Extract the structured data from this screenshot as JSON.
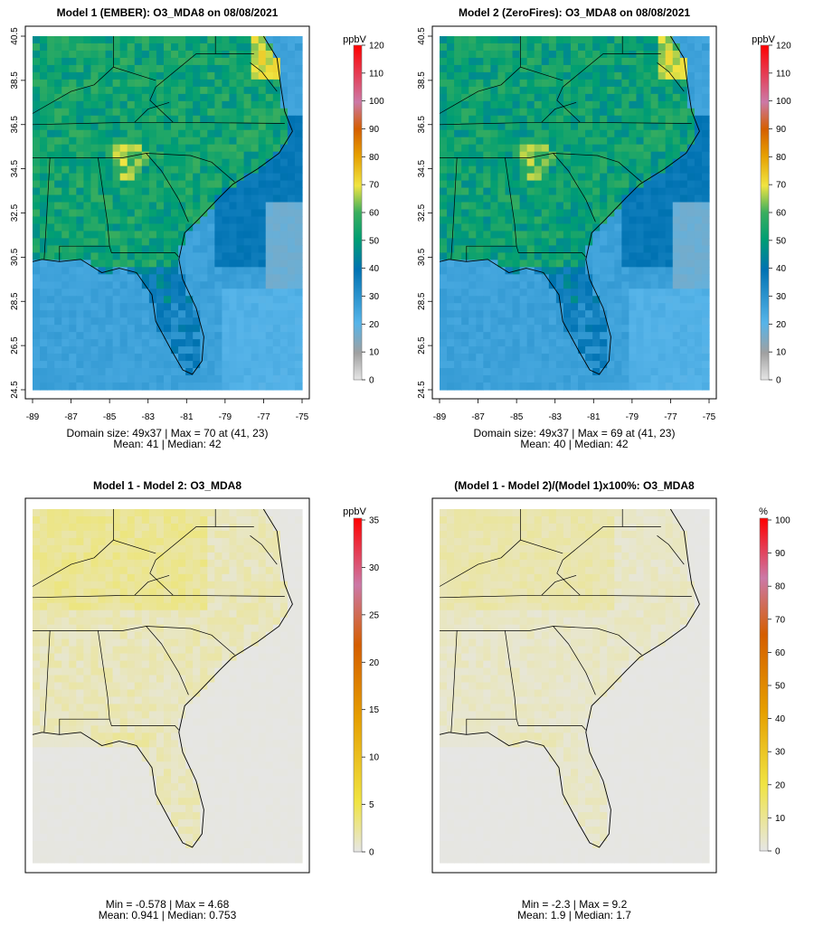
{
  "chart_data": [
    {
      "type": "heatmap",
      "title": "Model 1 (EMBER): O3_MDA8 on 08/08/2021",
      "legend_unit": "ppbV",
      "legend_ticks": [
        "0",
        "10",
        "20",
        "30",
        "40",
        "50",
        "60",
        "70",
        "80",
        "90",
        "100",
        "110",
        "120"
      ],
      "legend_range": [
        0,
        120
      ],
      "x_ticks": [
        "-89",
        "-87",
        "-85",
        "-83",
        "-81",
        "-79",
        "-77",
        "-75"
      ],
      "y_ticks": [
        "24.5",
        "26.5",
        "28.5",
        "30.5",
        "32.5",
        "34.5",
        "36.5",
        "38.5",
        "40.5"
      ],
      "x_range": [
        -89,
        -75
      ],
      "y_range": [
        24.5,
        40.5
      ],
      "grid_size": [
        49,
        37
      ],
      "stats": [
        "Domain size: 49x37 | Max = 70 at (41, 23)",
        "Mean: 41 |  Median: 42"
      ]
    },
    {
      "type": "heatmap",
      "title": "Model 2 (ZeroFires): O3_MDA8 on 08/08/2021",
      "legend_unit": "ppbV",
      "legend_ticks": [
        "0",
        "10",
        "20",
        "30",
        "40",
        "50",
        "60",
        "70",
        "80",
        "90",
        "100",
        "110",
        "120"
      ],
      "legend_range": [
        0,
        120
      ],
      "x_ticks": [
        "-89",
        "-87",
        "-85",
        "-83",
        "-81",
        "-79",
        "-77",
        "-75"
      ],
      "y_ticks": [
        "24.5",
        "26.5",
        "28.5",
        "30.5",
        "32.5",
        "34.5",
        "36.5",
        "38.5",
        "40.5"
      ],
      "x_range": [
        -89,
        -75
      ],
      "y_range": [
        24.5,
        40.5
      ],
      "grid_size": [
        49,
        37
      ],
      "stats": [
        "Domain size: 49x37 | Max = 69 at (41, 23)",
        "Mean: 40 |  Median: 42"
      ]
    },
    {
      "type": "heatmap",
      "title": "Model 1 - Model 2: O3_MDA8",
      "legend_unit": "ppbV",
      "legend_ticks": [
        "0",
        "5",
        "10",
        "15",
        "20",
        "25",
        "30",
        "35"
      ],
      "legend_range": [
        0,
        35
      ],
      "x_range": [
        -89,
        -75
      ],
      "y_range": [
        24.5,
        40.5
      ],
      "stats": [
        "Min = -0.578 | Max = 4.68",
        "Mean: 0.941 |  Median: 0.753"
      ]
    },
    {
      "type": "heatmap",
      "title": "(Model 1 - Model 2)/(Model 1)x100%: O3_MDA8",
      "legend_unit": "%",
      "legend_ticks": [
        "0",
        "10",
        "20",
        "30",
        "40",
        "50",
        "60",
        "70",
        "80",
        "90",
        "100"
      ],
      "legend_range": [
        0,
        100
      ],
      "x_range": [
        -89,
        -75
      ],
      "y_range": [
        24.5,
        40.5
      ],
      "stats": [
        "Min = -2.3 | Max = 9.2",
        "Mean: 1.9 |  Median: 1.7"
      ]
    }
  ],
  "colors": {
    "palette": [
      "#e6e6e6",
      "#9e9e9e",
      "#56b4e9",
      "#0072b2",
      "#009e73",
      "#f0e442",
      "#e69f00",
      "#d55e00",
      "#cc79a7",
      "#ff0000"
    ]
  }
}
